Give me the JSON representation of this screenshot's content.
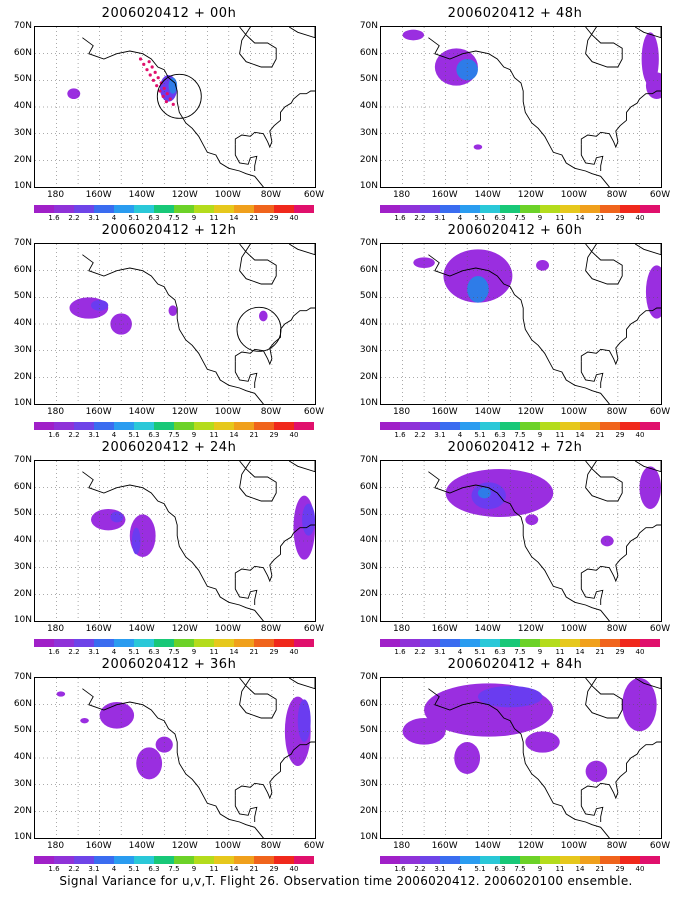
{
  "panels": [
    {
      "title": "2006020412 + 00h",
      "blobs": [
        [
          -172,
          45,
          3,
          2,
          1
        ],
        [
          -128,
          47,
          4,
          5,
          2
        ],
        [
          -126,
          48,
          2,
          3,
          3
        ]
      ],
      "dots": true,
      "circle": [
        -123,
        44
      ]
    },
    {
      "title": "2006020412 + 12h",
      "blobs": [
        [
          -165,
          46,
          9,
          4,
          1
        ],
        [
          -150,
          40,
          5,
          4,
          1
        ],
        [
          -160,
          47,
          4,
          2,
          2
        ],
        [
          -126,
          45,
          2,
          2,
          1
        ],
        [
          -84,
          43,
          2,
          2,
          1
        ]
      ],
      "circle": [
        -86,
        38
      ]
    },
    {
      "title": "2006020412 + 24h",
      "blobs": [
        [
          -156,
          48,
          8,
          4,
          1
        ],
        [
          -140,
          42,
          6,
          8,
          1
        ],
        [
          -143,
          40,
          2,
          5,
          2
        ],
        [
          -152,
          49,
          3,
          2,
          2
        ],
        [
          -65,
          45,
          5,
          12,
          1
        ],
        [
          -63,
          48,
          3,
          6,
          2
        ]
      ]
    },
    {
      "title": "2006020412 + 36h",
      "blobs": [
        [
          -152,
          56,
          8,
          5,
          1
        ],
        [
          -137,
          38,
          6,
          6,
          1
        ],
        [
          -130,
          45,
          4,
          3,
          1
        ],
        [
          -178,
          64,
          2,
          1,
          1
        ],
        [
          -167,
          54,
          2,
          1,
          1
        ],
        [
          -68,
          50,
          6,
          13,
          1
        ],
        [
          -65,
          54,
          3,
          8,
          2
        ]
      ]
    },
    {
      "title": "2006020412 + 48h",
      "blobs": [
        [
          -155,
          55,
          10,
          7,
          1
        ],
        [
          -150,
          54,
          5,
          4,
          3
        ],
        [
          -175,
          67,
          5,
          2,
          1
        ],
        [
          -65,
          58,
          4,
          10,
          1
        ],
        [
          -62,
          48,
          5,
          5,
          1
        ],
        [
          -145,
          25,
          2,
          1,
          1
        ]
      ]
    },
    {
      "title": "2006020412 + 60h",
      "blobs": [
        [
          -145,
          58,
          16,
          10,
          1
        ],
        [
          -145,
          53,
          5,
          5,
          3
        ],
        [
          -170,
          63,
          5,
          2,
          1
        ],
        [
          -115,
          62,
          3,
          2,
          1
        ],
        [
          -62,
          52,
          5,
          10,
          1
        ]
      ]
    },
    {
      "title": "2006020412 + 72h",
      "blobs": [
        [
          -135,
          58,
          25,
          9,
          1
        ],
        [
          -140,
          57,
          8,
          5,
          2
        ],
        [
          -142,
          58,
          3,
          2,
          3
        ],
        [
          -120,
          48,
          3,
          2,
          1
        ],
        [
          -65,
          60,
          5,
          8,
          1
        ],
        [
          -85,
          40,
          3,
          2,
          1
        ]
      ]
    },
    {
      "title": "2006020412 + 84h",
      "blobs": [
        [
          -140,
          58,
          30,
          10,
          1
        ],
        [
          -130,
          63,
          15,
          4,
          2
        ],
        [
          -170,
          50,
          10,
          5,
          1
        ],
        [
          -115,
          46,
          8,
          4,
          1
        ],
        [
          -90,
          35,
          5,
          4,
          1
        ],
        [
          -70,
          60,
          8,
          10,
          1
        ],
        [
          -150,
          40,
          6,
          6,
          1
        ]
      ]
    }
  ],
  "y_labels": [
    "70N",
    "60N",
    "50N",
    "40N",
    "30N",
    "20N",
    "10N"
  ],
  "x_labels": [
    "180",
    "160W",
    "140W",
    "120W",
    "100W",
    "80W",
    "60W"
  ],
  "colorbar": {
    "colors": [
      "#a020c8",
      "#8f32d8",
      "#6e44e8",
      "#3a6cf0",
      "#2a9cf0",
      "#2ac8d8",
      "#18c878",
      "#6cd228",
      "#b4dc1c",
      "#e6c81c",
      "#f0a01c",
      "#f0641c",
      "#f0281c",
      "#e0106c"
    ],
    "labels": [
      "1.6",
      "2.2",
      "3.1",
      "4",
      "5.1",
      "6.3",
      "7.5",
      "9",
      "11",
      "14",
      "21",
      "29",
      "40"
    ]
  },
  "shade_colors": [
    "#9a2ee0",
    "#6a3cf0",
    "#2e7ce8",
    "#1aa8e0"
  ],
  "footer": "Signal Variance for u,v,T. Flight 26. Observation time 2006020412. 2006020100 ensemble."
}
